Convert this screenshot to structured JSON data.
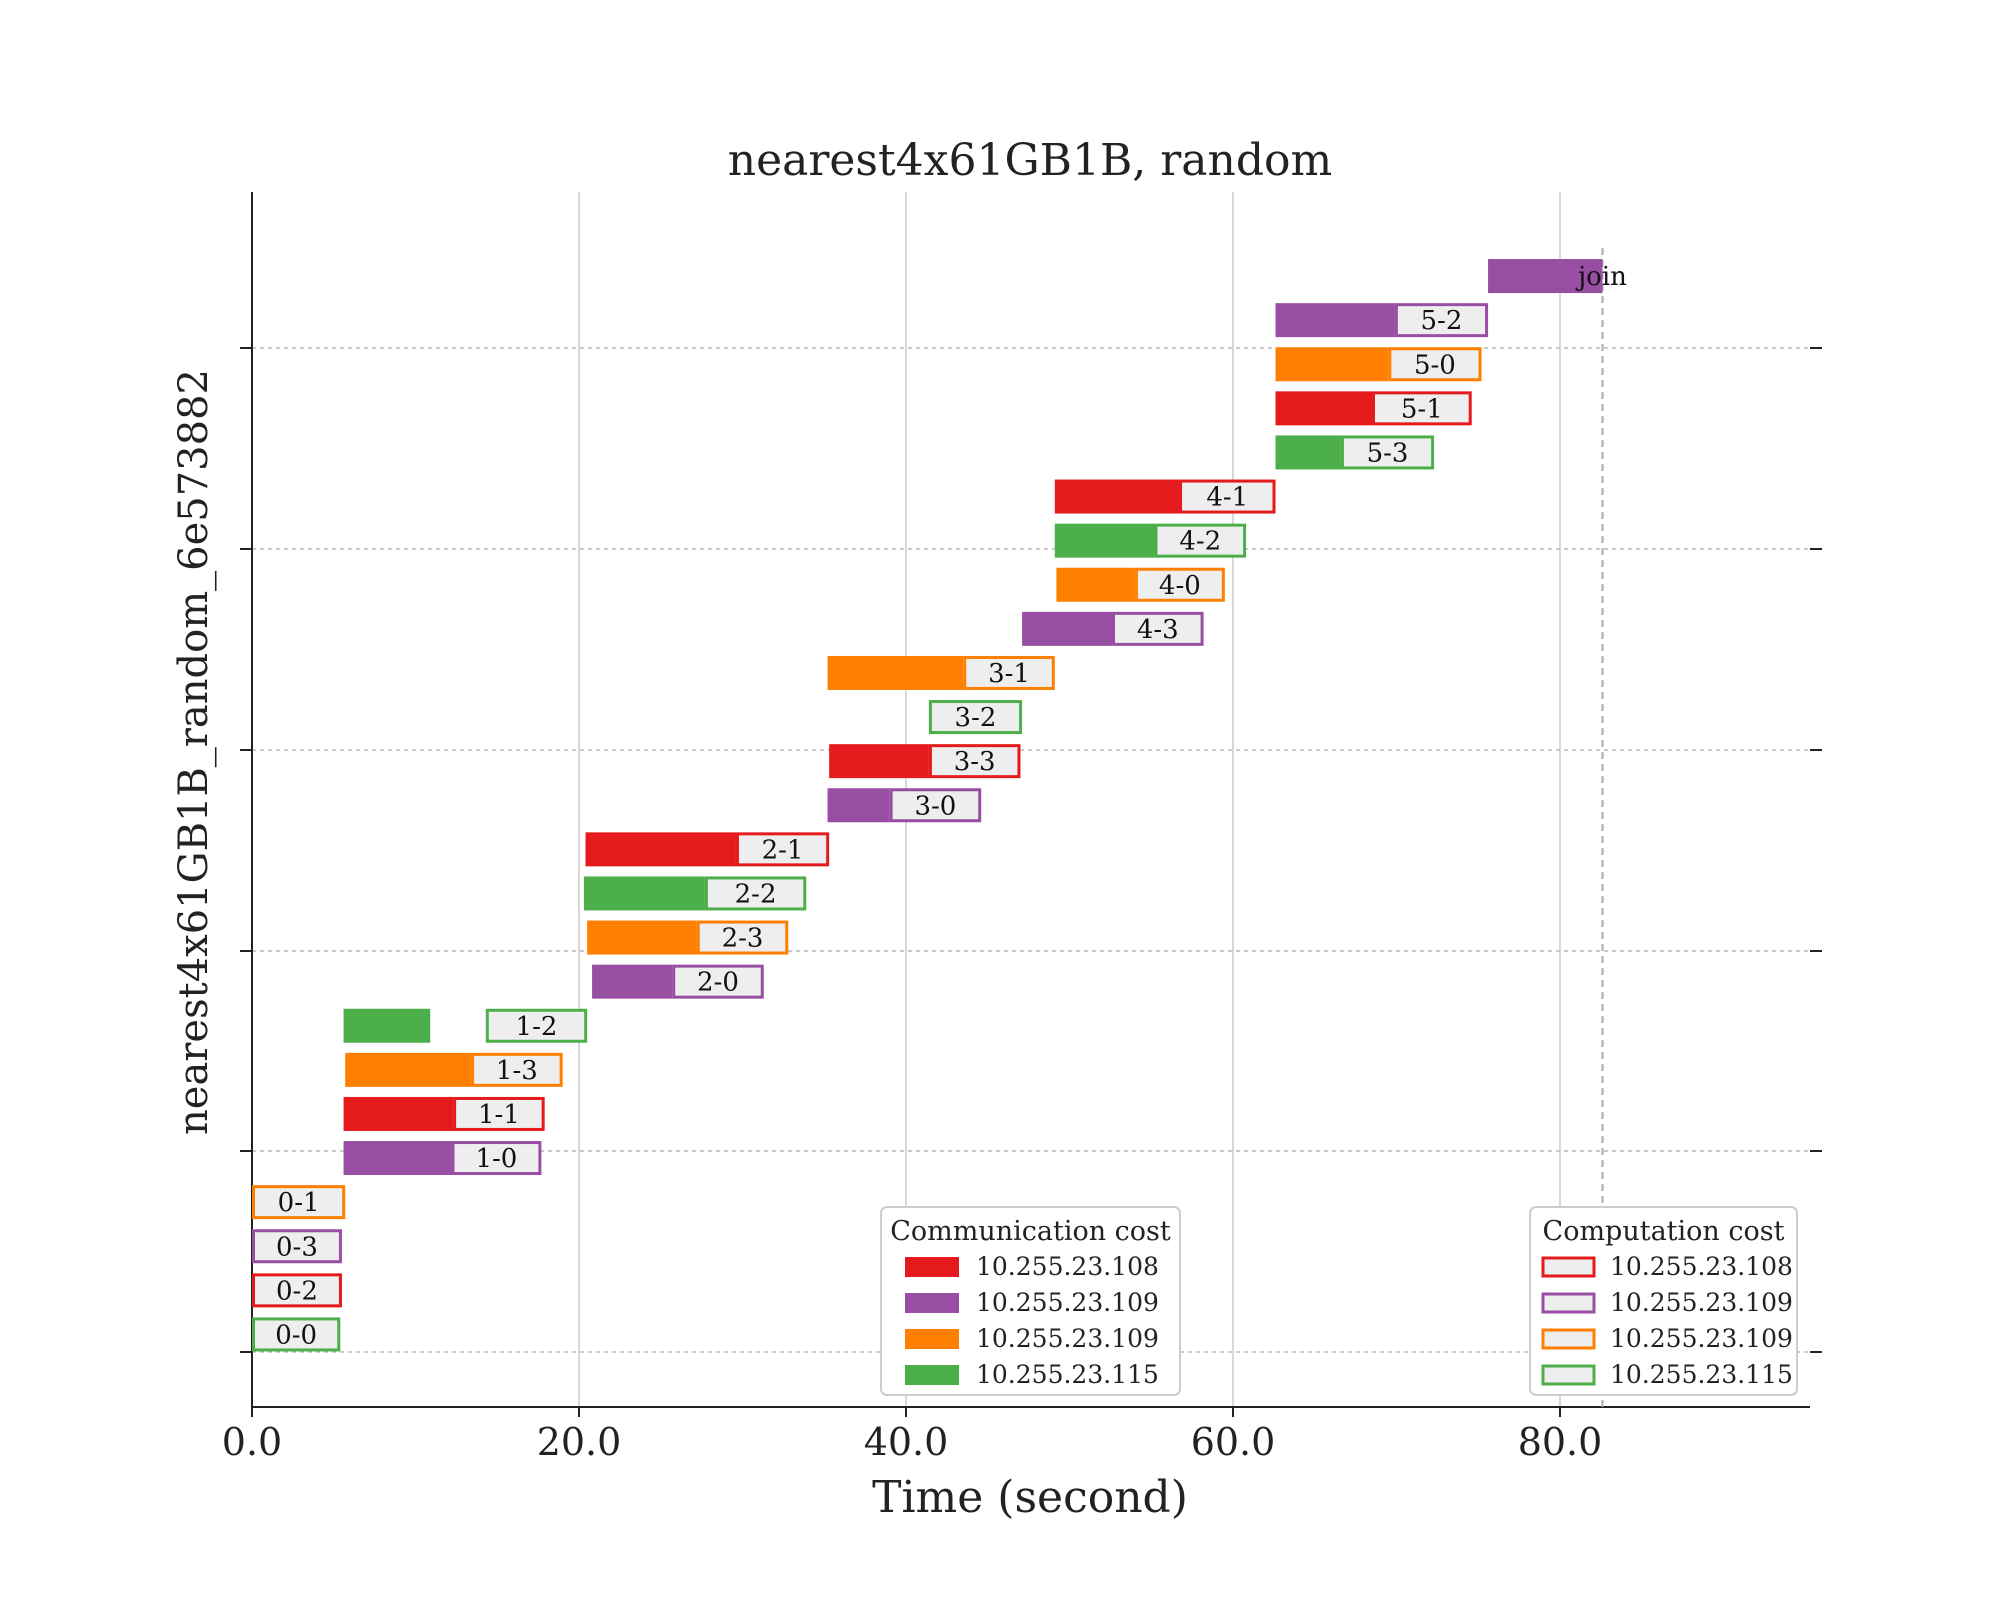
{
  "chart_data": {
    "type": "gantt",
    "title": "nearest4x61GB1B, random",
    "xlabel": "Time (second)",
    "ylabel": "nearest4x61GB1B_random_6e573882",
    "xlim": [
      0,
      95
    ],
    "xticks": [
      0,
      20,
      40,
      60,
      80
    ],
    "xtick_labels": [
      "0.0",
      "20.0",
      "40.0",
      "60.0",
      "80.0"
    ],
    "grid_x": true,
    "grid_y": "dashed",
    "join_line_x": 82.6,
    "colors": {
      "red": "#e41a1c",
      "purple": "#984ea3",
      "orange": "#ff7f00",
      "green": "#4daf4a",
      "computation_fill": "#eeeeee"
    },
    "tasks": [
      {
        "label": "0-0",
        "color": "green",
        "comm_start": 0.0,
        "comm_end": 0.0,
        "comp_end": 5.4
      },
      {
        "label": "0-2",
        "color": "red",
        "comm_start": 0.0,
        "comm_end": 0.0,
        "comp_end": 5.5
      },
      {
        "label": "0-3",
        "color": "purple",
        "comm_start": 0.0,
        "comm_end": 0.0,
        "comp_end": 5.5
      },
      {
        "label": "0-1",
        "color": "orange",
        "comm_start": 0.0,
        "comm_end": 0.0,
        "comp_end": 5.7
      },
      {
        "label": "1-0",
        "color": "purple",
        "comm_start": 5.6,
        "comm_end": 12.2,
        "comp_end": 17.7
      },
      {
        "label": "1-1",
        "color": "red",
        "comm_start": 5.6,
        "comm_end": 12.3,
        "comp_end": 17.9
      },
      {
        "label": "1-3",
        "color": "orange",
        "comm_start": 5.7,
        "comm_end": 13.4,
        "comp_end": 19.0
      },
      {
        "label": "1-2",
        "color": "green",
        "comm_start": 5.6,
        "comm_end": 10.9,
        "comp_start": 14.3,
        "comp_end": 20.5
      },
      {
        "label": "2-0",
        "color": "purple",
        "comm_start": 20.8,
        "comm_end": 25.7,
        "comp_end": 31.3
      },
      {
        "label": "2-3",
        "color": "orange",
        "comm_start": 20.5,
        "comm_end": 27.2,
        "comp_end": 32.8
      },
      {
        "label": "2-2",
        "color": "green",
        "comm_start": 20.3,
        "comm_end": 27.7,
        "comp_end": 33.9
      },
      {
        "label": "2-1",
        "color": "red",
        "comm_start": 20.4,
        "comm_end": 29.6,
        "comp_end": 35.3
      },
      {
        "label": "3-0",
        "color": "purple",
        "comm_start": 35.2,
        "comm_end": 39.0,
        "comp_end": 44.6
      },
      {
        "label": "3-3",
        "color": "red",
        "comm_start": 35.3,
        "comm_end": 41.4,
        "comp_end": 47.0
      },
      {
        "label": "3-2",
        "color": "green",
        "comm_start": 41.4,
        "comm_end": 41.4,
        "comp_end": 47.1
      },
      {
        "label": "3-1",
        "color": "orange",
        "comm_start": 35.2,
        "comm_end": 43.5,
        "comp_end": 49.1
      },
      {
        "label": "4-3",
        "color": "purple",
        "comm_start": 47.1,
        "comm_end": 52.6,
        "comp_end": 58.2
      },
      {
        "label": "4-0",
        "color": "orange",
        "comm_start": 49.2,
        "comm_end": 54.0,
        "comp_end": 59.5
      },
      {
        "label": "4-2",
        "color": "green",
        "comm_start": 49.1,
        "comm_end": 55.2,
        "comp_end": 60.8
      },
      {
        "label": "4-1",
        "color": "red",
        "comm_start": 49.1,
        "comm_end": 56.7,
        "comp_end": 62.6
      },
      {
        "label": "5-3",
        "color": "green",
        "comm_start": 62.6,
        "comm_end": 66.6,
        "comp_end": 72.3
      },
      {
        "label": "5-1",
        "color": "red",
        "comm_start": 62.6,
        "comm_end": 68.5,
        "comp_end": 74.6
      },
      {
        "label": "5-0",
        "color": "orange",
        "comm_start": 62.6,
        "comm_end": 69.5,
        "comp_end": 75.2
      },
      {
        "label": "5-2",
        "color": "purple",
        "comm_start": 62.6,
        "comm_end": 69.9,
        "comp_end": 75.6
      },
      {
        "label": "join",
        "color": "purple",
        "comm_start": 75.6,
        "comm_end": 82.6
      }
    ],
    "legends": [
      {
        "title": "Communication cost",
        "kind": "filled",
        "position": "lower-center-right",
        "entries": [
          {
            "label": "10.255.23.108",
            "color": "red"
          },
          {
            "label": "10.255.23.109",
            "color": "purple"
          },
          {
            "label": "10.255.23.109",
            "color": "orange"
          },
          {
            "label": "10.255.23.115",
            "color": "green"
          }
        ]
      },
      {
        "title": "Computation cost",
        "kind": "outlined",
        "position": "lower-right",
        "entries": [
          {
            "label": "10.255.23.108",
            "color": "red"
          },
          {
            "label": "10.255.23.109",
            "color": "purple"
          },
          {
            "label": "10.255.23.109",
            "color": "orange"
          },
          {
            "label": "10.255.23.115",
            "color": "green"
          }
        ]
      }
    ]
  }
}
